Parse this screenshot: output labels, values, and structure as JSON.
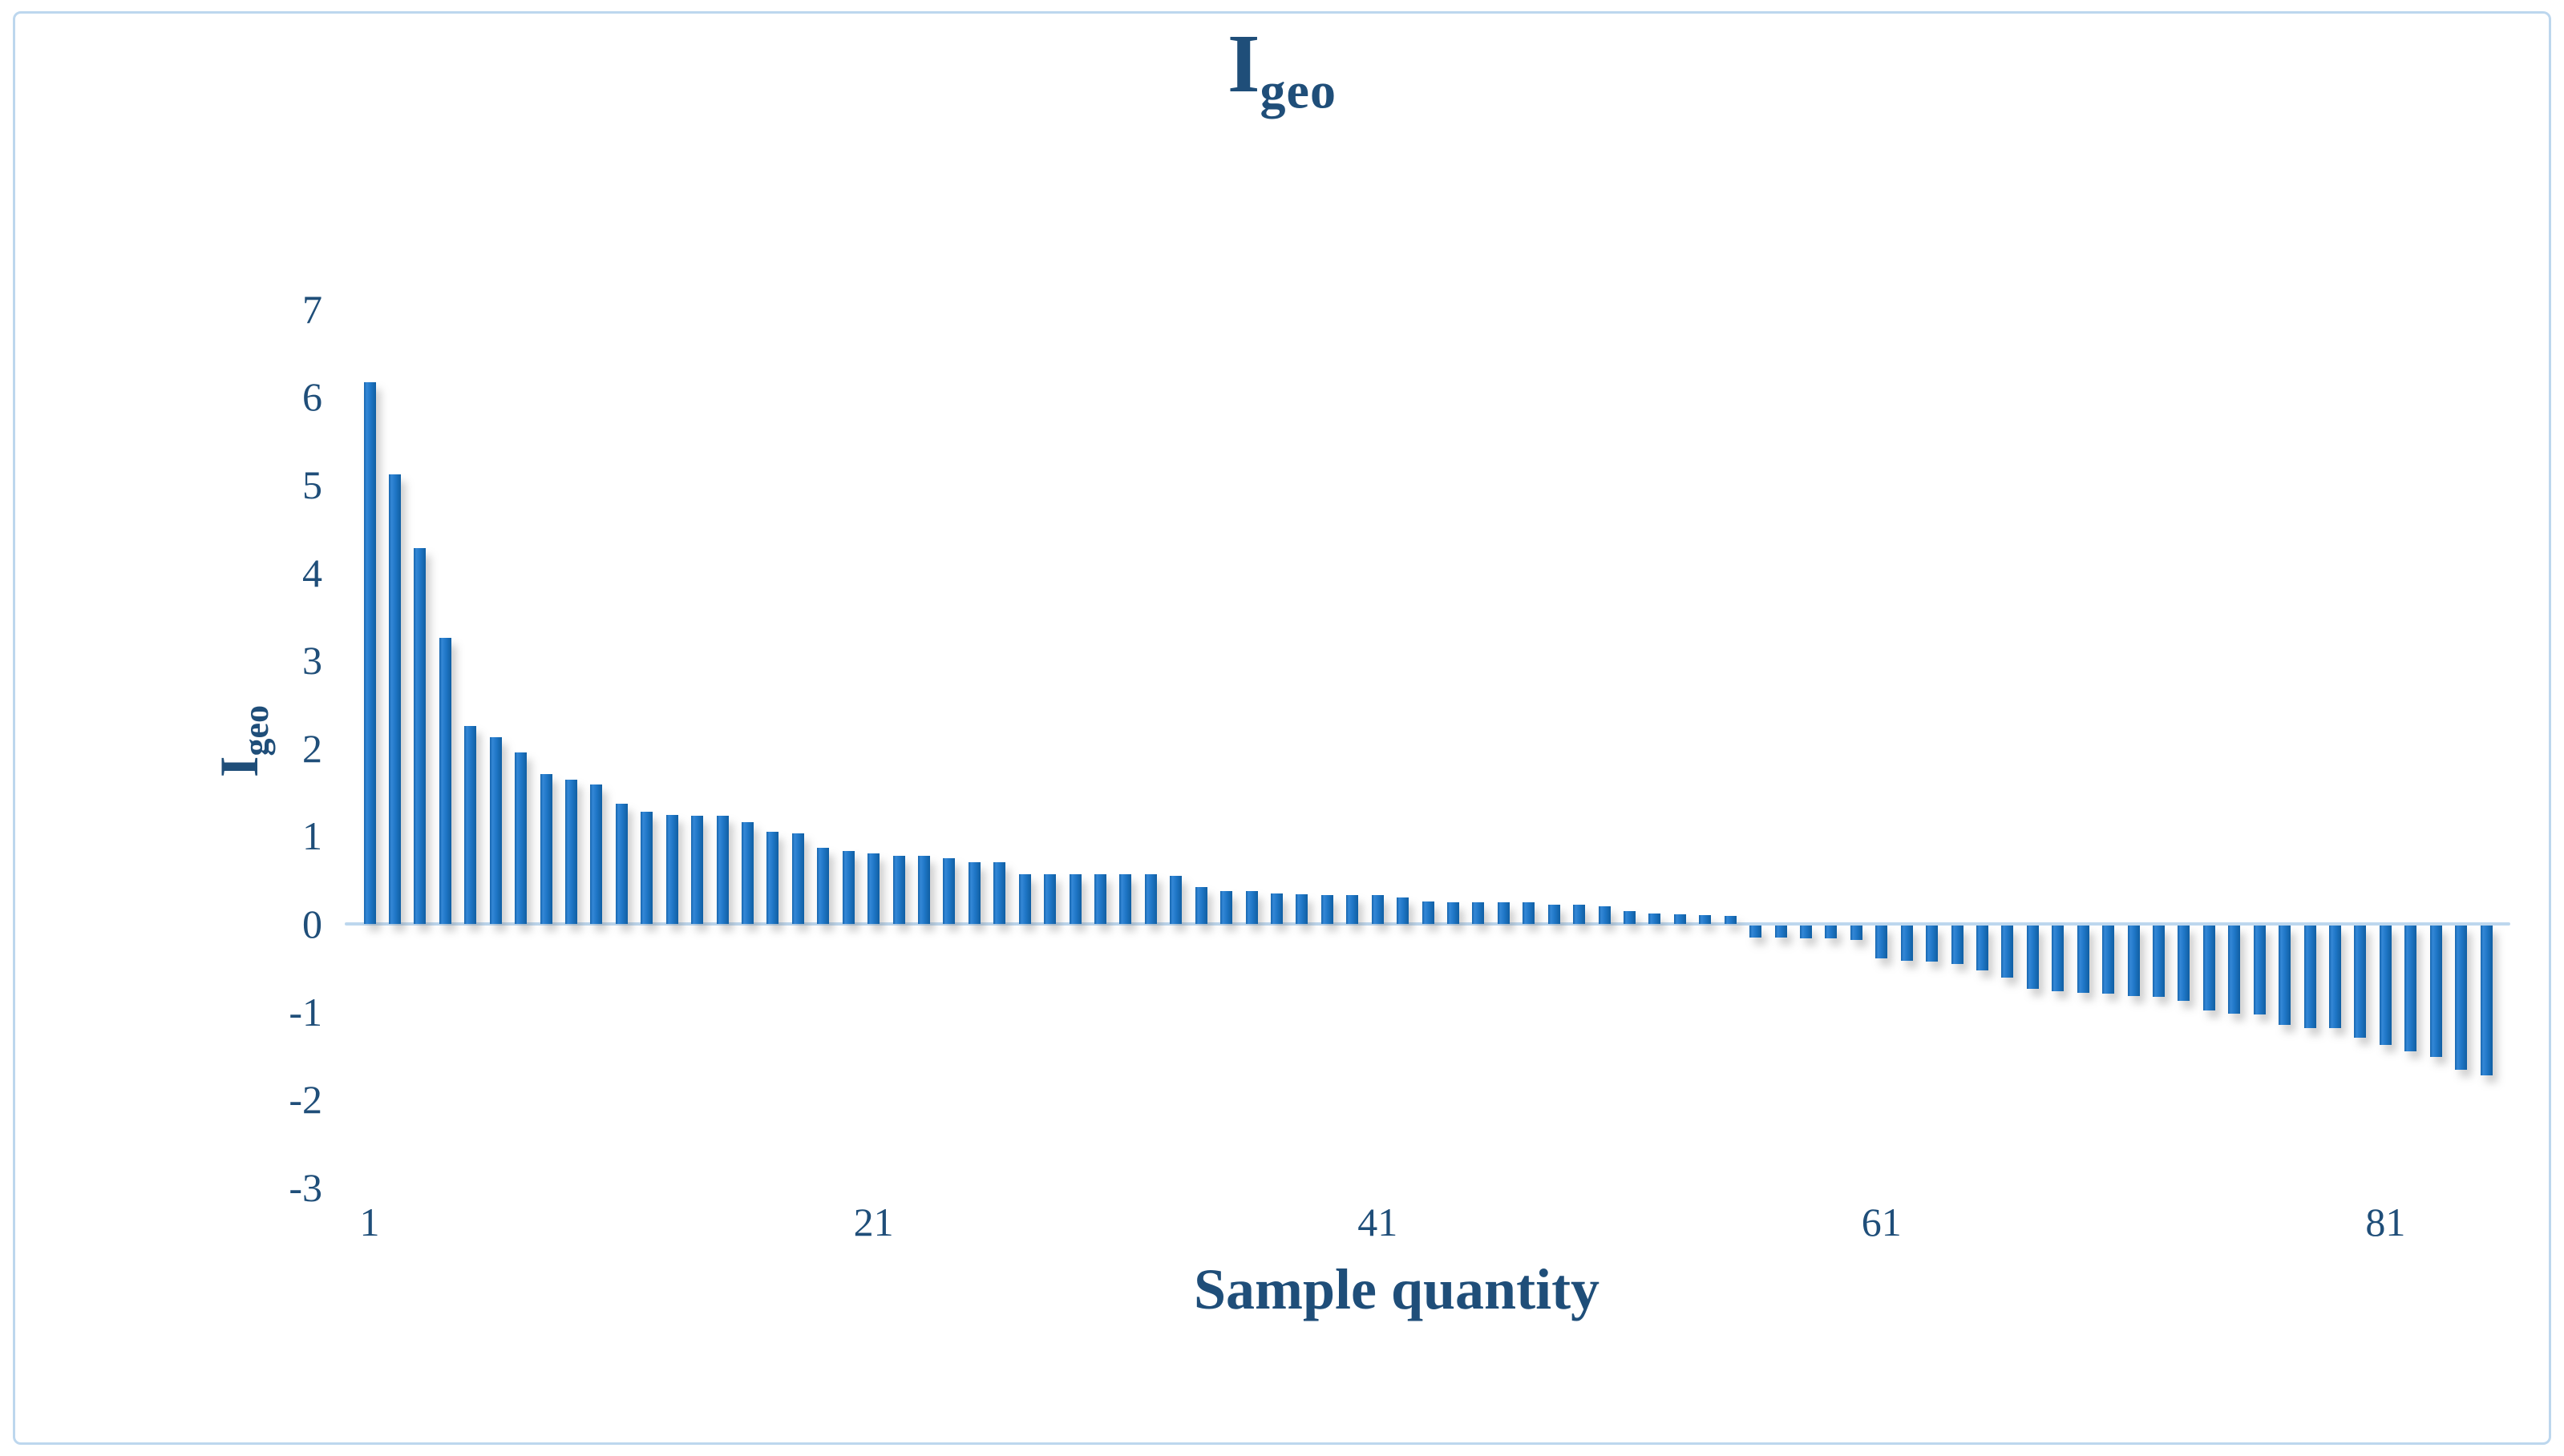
{
  "figure": {
    "border_color": "#BDD7EE",
    "background": "#ffffff"
  },
  "chart_data": {
    "type": "bar",
    "title": "Igeo",
    "title_base": "I",
    "title_sub": "geo",
    "ylabel": "Igeo",
    "ylabel_base": "I",
    "ylabel_sub": "geo",
    "xlabel": "Sample quantity",
    "x_start": 1,
    "x_end": 85,
    "values": [
      6.17,
      5.12,
      4.28,
      3.26,
      2.25,
      2.13,
      1.95,
      1.71,
      1.64,
      1.59,
      1.37,
      1.28,
      1.24,
      1.23,
      1.23,
      1.16,
      1.05,
      1.03,
      0.87,
      0.83,
      0.8,
      0.78,
      0.78,
      0.75,
      0.7,
      0.7,
      0.57,
      0.57,
      0.57,
      0.57,
      0.57,
      0.57,
      0.55,
      0.42,
      0.37,
      0.37,
      0.35,
      0.34,
      0.33,
      0.33,
      0.33,
      0.3,
      0.26,
      0.25,
      0.25,
      0.25,
      0.25,
      0.22,
      0.22,
      0.2,
      0.15,
      0.12,
      0.11,
      0.1,
      0.09,
      -0.14,
      -0.14,
      -0.15,
      -0.15,
      -0.16,
      -0.37,
      -0.4,
      -0.41,
      -0.44,
      -0.51,
      -0.59,
      -0.72,
      -0.75,
      -0.77,
      -0.78,
      -0.8,
      -0.81,
      -0.86,
      -0.97,
      -1.0,
      -1.01,
      -1.13,
      -1.17,
      -1.17,
      -1.28,
      -1.36,
      -1.43,
      -1.5,
      -1.64,
      -1.71
    ],
    "yticks": [
      7,
      6,
      5,
      4,
      3,
      2,
      1,
      0,
      -1,
      -2,
      -3
    ],
    "xticks": [
      1,
      21,
      41,
      61,
      81
    ],
    "ylim": [
      -3.5,
      7.5
    ],
    "grid": false,
    "legend": false,
    "bar_color": "#1E76C6",
    "axis_line_color": "#BDD7EE",
    "text_color": "#1F4E79"
  }
}
